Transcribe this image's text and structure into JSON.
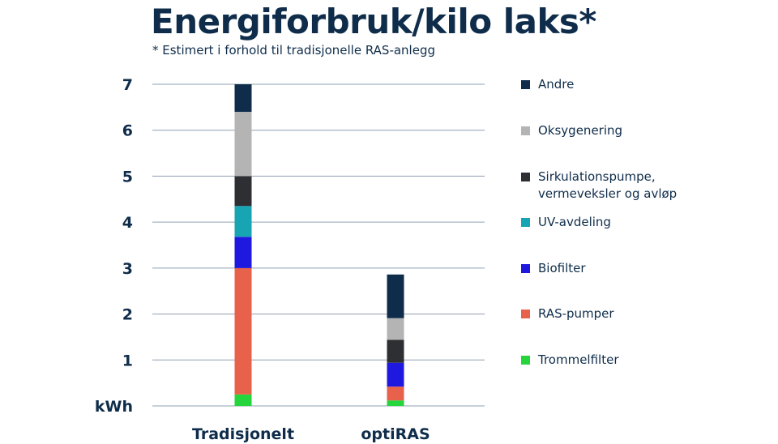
{
  "title": "Energiforbruk/kilo laks*",
  "subtitle": "* Estimert i forhold til tradisjonelle RAS-anlegg",
  "colors": {
    "text": "#0f2d4b",
    "grid": "#8fa0b0"
  },
  "chart_data": {
    "type": "bar",
    "stacked": true,
    "title": "Energiforbruk/kilo laks*",
    "subtitle": "* Estimert i forhold til tradisjonelle RAS-anlegg",
    "ylabel": "kWh",
    "xlabel": "",
    "ylim": [
      0,
      7
    ],
    "yticks": [
      "kWh",
      "1",
      "2",
      "3",
      "4",
      "5",
      "6",
      "7"
    ],
    "categories": [
      "Tradisjonelt",
      "optiRAS"
    ],
    "grid": true,
    "legend_position": "right",
    "series": [
      {
        "name": "Trommelfilter",
        "color": "#26d43b",
        "values": [
          0.25,
          0.12
        ]
      },
      {
        "name": "RAS-pumper",
        "color": "#e8614a",
        "values": [
          2.75,
          0.3
        ]
      },
      {
        "name": "Biofilter",
        "color": "#1f19e0",
        "values": [
          0.68,
          0.52
        ]
      },
      {
        "name": "UV-avdeling",
        "color": "#17a5b4",
        "values": [
          0.67,
          0.0
        ]
      },
      {
        "name": "Sirkulationspumpe,\nvermeveksler og avløp",
        "color": "#2e2f33",
        "values": [
          0.65,
          0.5
        ]
      },
      {
        "name": "Oksygenering",
        "color": "#b4b4b4",
        "values": [
          1.4,
          0.47
        ]
      },
      {
        "name": "Andre",
        "color": "#0f2d4b",
        "values": [
          0.6,
          0.95
        ]
      }
    ]
  }
}
